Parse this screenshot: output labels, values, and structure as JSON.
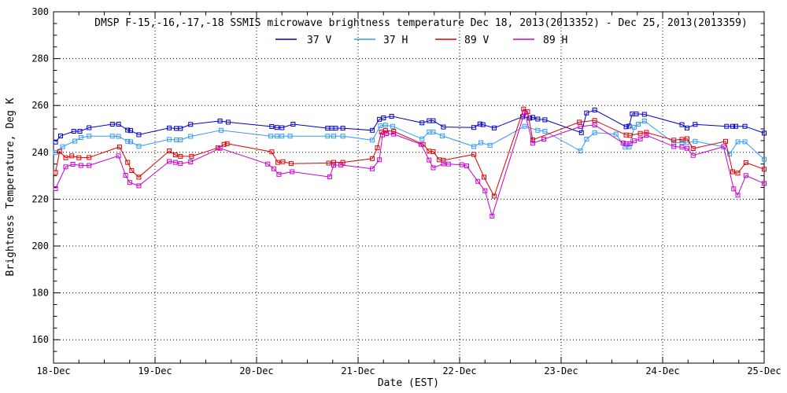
{
  "figure": {
    "background": "#ffffff",
    "axis_color": "#000000"
  },
  "chart_data": {
    "type": "line",
    "title": "DMSP F-15,-16,-17,-18 SSMIS microwave brightness temperature Dec 18, 2013(2013352) - Dec 25, 2013(2013359)",
    "xlabel": "Date (EST)",
    "ylabel": "Brightness Temperature, Deg K",
    "x_unit": "days since Dec 18 00:00 EST",
    "xlim": [
      0,
      7
    ],
    "ylim": [
      150,
      300
    ],
    "x_tick_values": [
      0,
      1,
      2,
      3,
      4,
      5,
      6,
      7
    ],
    "x_tick_labels": [
      "18-Dec",
      "19-Dec",
      "20-Dec",
      "21-Dec",
      "22-Dec",
      "23-Dec",
      "24-Dec",
      "25-Dec"
    ],
    "x_minor_step": 0.25,
    "y_tick_values": [
      160,
      180,
      200,
      220,
      240,
      260,
      280,
      300
    ],
    "y_minor_step": 5,
    "grid": "dotted",
    "legend_position": "top",
    "marker": "open-square",
    "series": [
      {
        "name": "37 V",
        "color": "#0000cc",
        "points": [
          [
            0.02,
            244.4
          ],
          [
            0.07,
            247.0
          ],
          [
            0.2,
            249.0
          ],
          [
            0.26,
            249.0
          ],
          [
            0.35,
            250.5
          ],
          [
            0.58,
            252.0
          ],
          [
            0.64,
            252.0
          ],
          [
            0.73,
            249.5
          ],
          [
            0.76,
            249.3
          ],
          [
            0.84,
            247.5
          ],
          [
            1.14,
            250.4
          ],
          [
            1.21,
            250.2
          ],
          [
            1.25,
            250.2
          ],
          [
            1.35,
            251.9
          ],
          [
            1.64,
            253.4
          ],
          [
            1.72,
            252.9
          ],
          [
            2.15,
            251.0
          ],
          [
            2.2,
            250.6
          ],
          [
            2.25,
            250.5
          ],
          [
            2.36,
            252.0
          ],
          [
            2.7,
            250.3
          ],
          [
            2.74,
            250.3
          ],
          [
            2.78,
            250.3
          ],
          [
            2.85,
            250.3
          ],
          [
            3.14,
            249.4
          ],
          [
            3.21,
            254.1
          ],
          [
            3.25,
            254.7
          ],
          [
            3.33,
            255.4
          ],
          [
            3.63,
            252.6
          ],
          [
            3.7,
            253.5
          ],
          [
            3.74,
            253.5
          ],
          [
            3.84,
            250.8
          ],
          [
            4.14,
            250.6
          ],
          [
            4.2,
            252.1
          ],
          [
            4.23,
            251.8
          ],
          [
            4.34,
            250.4
          ],
          [
            4.62,
            255.2
          ],
          [
            4.69,
            254.6
          ],
          [
            4.72,
            254.9
          ],
          [
            4.77,
            254.2
          ],
          [
            4.84,
            253.9
          ],
          [
            5.2,
            248.4
          ],
          [
            5.25,
            256.8
          ],
          [
            5.33,
            258.1
          ],
          [
            5.64,
            250.9
          ],
          [
            5.67,
            251.2
          ],
          [
            5.7,
            256.4
          ],
          [
            5.74,
            256.4
          ],
          [
            5.82,
            256.2
          ],
          [
            6.19,
            251.8
          ],
          [
            6.24,
            250.4
          ],
          [
            6.32,
            251.9
          ],
          [
            6.63,
            251.1
          ],
          [
            6.69,
            251.1
          ],
          [
            6.72,
            251.1
          ],
          [
            6.81,
            251.1
          ],
          [
            7.0,
            248.2
          ]
        ]
      },
      {
        "name": "37 H",
        "color": "#3399ff",
        "points": [
          [
            0.02,
            239.9
          ],
          [
            0.09,
            242.4
          ],
          [
            0.21,
            244.8
          ],
          [
            0.27,
            246.3
          ],
          [
            0.35,
            246.9
          ],
          [
            0.58,
            246.9
          ],
          [
            0.64,
            246.8
          ],
          [
            0.73,
            244.7
          ],
          [
            0.76,
            244.5
          ],
          [
            0.84,
            242.6
          ],
          [
            1.14,
            245.5
          ],
          [
            1.21,
            245.3
          ],
          [
            1.25,
            245.3
          ],
          [
            1.35,
            246.8
          ],
          [
            1.65,
            249.4
          ],
          [
            2.14,
            246.9
          ],
          [
            2.2,
            246.9
          ],
          [
            2.25,
            246.9
          ],
          [
            2.33,
            246.9
          ],
          [
            2.7,
            246.9
          ],
          [
            2.76,
            246.9
          ],
          [
            2.85,
            246.9
          ],
          [
            3.14,
            245.2
          ],
          [
            3.22,
            251.3
          ],
          [
            3.27,
            251.6
          ],
          [
            3.34,
            251.1
          ],
          [
            3.63,
            245.7
          ],
          [
            3.7,
            248.7
          ],
          [
            3.74,
            248.7
          ],
          [
            3.83,
            247.0
          ],
          [
            4.14,
            242.5
          ],
          [
            4.21,
            244.1
          ],
          [
            4.3,
            243.0
          ],
          [
            4.64,
            251.1
          ],
          [
            4.77,
            249.4
          ],
          [
            4.84,
            249.0
          ],
          [
            5.19,
            240.6
          ],
          [
            5.25,
            245.6
          ],
          [
            5.33,
            248.4
          ],
          [
            5.54,
            247.8
          ],
          [
            5.63,
            242.2
          ],
          [
            5.67,
            242.3
          ],
          [
            5.72,
            250.7
          ],
          [
            5.76,
            252.0
          ],
          [
            5.82,
            253.4
          ],
          [
            6.11,
            244.0
          ],
          [
            6.19,
            244.2
          ],
          [
            6.24,
            244.2
          ],
          [
            6.32,
            244.7
          ],
          [
            6.6,
            242.4
          ],
          [
            6.66,
            239.3
          ],
          [
            6.74,
            244.5
          ],
          [
            6.81,
            244.5
          ],
          [
            7.0,
            237.0
          ]
        ]
      },
      {
        "name": "89 V",
        "color": "#dd0000",
        "points": [
          [
            0.02,
            231.4
          ],
          [
            0.06,
            240.4
          ],
          [
            0.12,
            237.7
          ],
          [
            0.18,
            238.5
          ],
          [
            0.25,
            237.7
          ],
          [
            0.35,
            237.8
          ],
          [
            0.65,
            242.3
          ],
          [
            0.73,
            235.7
          ],
          [
            0.77,
            232.2
          ],
          [
            0.84,
            229.4
          ],
          [
            1.14,
            240.6
          ],
          [
            1.2,
            238.9
          ],
          [
            1.25,
            238.3
          ],
          [
            1.36,
            238.3
          ],
          [
            1.62,
            241.9
          ],
          [
            1.68,
            243.4
          ],
          [
            1.71,
            243.7
          ],
          [
            2.15,
            240.2
          ],
          [
            2.21,
            235.7
          ],
          [
            2.26,
            236.0
          ],
          [
            2.34,
            235.2
          ],
          [
            2.71,
            235.4
          ],
          [
            2.76,
            235.7
          ],
          [
            2.85,
            235.7
          ],
          [
            3.14,
            237.3
          ],
          [
            3.19,
            241.9
          ],
          [
            3.23,
            248.7
          ],
          [
            3.27,
            249.3
          ],
          [
            3.35,
            249.0
          ],
          [
            3.64,
            243.4
          ],
          [
            3.7,
            240.5
          ],
          [
            3.74,
            240.3
          ],
          [
            3.8,
            236.8
          ],
          [
            3.84,
            236.6
          ],
          [
            4.14,
            239.1
          ],
          [
            4.24,
            229.4
          ],
          [
            4.34,
            221.3
          ],
          [
            4.63,
            258.5
          ],
          [
            4.67,
            257.3
          ],
          [
            4.72,
            245.3
          ],
          [
            5.18,
            252.9
          ],
          [
            5.33,
            253.6
          ],
          [
            5.64,
            247.4
          ],
          [
            5.68,
            247.2
          ],
          [
            5.78,
            248.1
          ],
          [
            5.84,
            248.5
          ],
          [
            6.11,
            245.2
          ],
          [
            6.19,
            245.5
          ],
          [
            6.24,
            245.8
          ],
          [
            6.3,
            241.6
          ],
          [
            6.62,
            244.7
          ],
          [
            6.69,
            231.7
          ],
          [
            6.74,
            231.1
          ],
          [
            6.82,
            235.6
          ],
          [
            7.0,
            232.8
          ]
        ]
      },
      {
        "name": "89 H",
        "color": "#cc00cc",
        "points": [
          [
            0.02,
            224.5
          ],
          [
            0.12,
            233.8
          ],
          [
            0.19,
            234.9
          ],
          [
            0.27,
            234.4
          ],
          [
            0.35,
            234.4
          ],
          [
            0.64,
            238.5
          ],
          [
            0.71,
            230.2
          ],
          [
            0.75,
            227.1
          ],
          [
            0.84,
            225.7
          ],
          [
            1.14,
            236.1
          ],
          [
            1.2,
            235.7
          ],
          [
            1.25,
            235.2
          ],
          [
            1.35,
            235.9
          ],
          [
            1.64,
            241.7
          ],
          [
            2.11,
            235.0
          ],
          [
            2.17,
            233.0
          ],
          [
            2.22,
            230.6
          ],
          [
            2.35,
            231.7
          ],
          [
            2.72,
            229.5
          ],
          [
            2.76,
            234.5
          ],
          [
            2.83,
            234.6
          ],
          [
            3.14,
            233.0
          ],
          [
            3.21,
            236.8
          ],
          [
            3.24,
            247.4
          ],
          [
            3.28,
            248.0
          ],
          [
            3.35,
            247.8
          ],
          [
            3.62,
            243.4
          ],
          [
            3.7,
            236.7
          ],
          [
            3.74,
            233.4
          ],
          [
            3.84,
            235.1
          ],
          [
            3.89,
            235.0
          ],
          [
            4.02,
            234.7
          ],
          [
            4.07,
            234.2
          ],
          [
            4.18,
            227.6
          ],
          [
            4.25,
            223.6
          ],
          [
            4.32,
            212.8
          ],
          [
            4.64,
            257.0
          ],
          [
            4.72,
            243.9
          ],
          [
            4.83,
            245.6
          ],
          [
            5.19,
            251.0
          ],
          [
            5.33,
            251.7
          ],
          [
            5.61,
            244.0
          ],
          [
            5.64,
            243.6
          ],
          [
            5.68,
            243.7
          ],
          [
            5.72,
            244.9
          ],
          [
            5.78,
            245.7
          ],
          [
            5.84,
            247.3
          ],
          [
            6.11,
            242.5
          ],
          [
            6.19,
            242.2
          ],
          [
            6.24,
            241.7
          ],
          [
            6.3,
            238.7
          ],
          [
            6.6,
            242.4
          ],
          [
            6.7,
            224.4
          ],
          [
            6.74,
            221.7
          ],
          [
            6.82,
            230.1
          ],
          [
            7.0,
            226.7
          ]
        ]
      }
    ]
  }
}
